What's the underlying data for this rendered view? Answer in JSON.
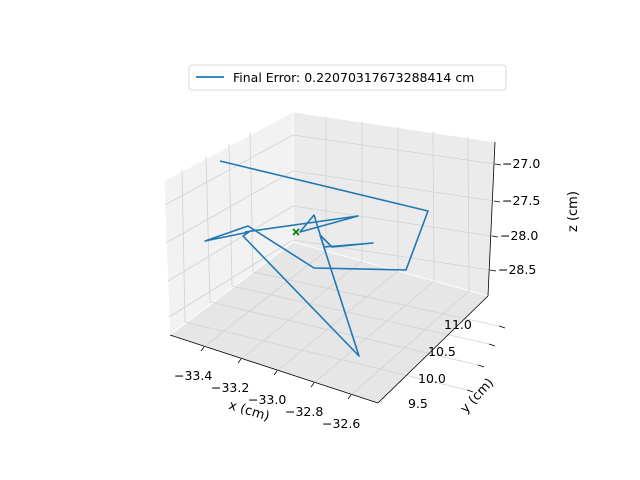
{
  "chart_data": {
    "type": "line",
    "projection": "3d",
    "legend": {
      "placement": "top-center",
      "entries": [
        {
          "label": "Final Error: 0.22070317673288414 cm"
        }
      ]
    },
    "axes": {
      "x": {
        "label": "x (cm)",
        "ticks": [
          "−33.4",
          "−33.2",
          "−33.0",
          "−32.8",
          "−32.6"
        ]
      },
      "y": {
        "label": "y (cm)",
        "ticks": [
          "9.5",
          "10.0",
          "10.5",
          "11.0"
        ]
      },
      "z": {
        "label": "z (cm)",
        "ticks": [
          "−27.0",
          "−27.5",
          "−28.0",
          "−28.5"
        ]
      },
      "grid": true
    },
    "series": [
      {
        "color": "#1f77b4"
      }
    ],
    "target_marker": {
      "symbol": "x",
      "color": "#008000"
    }
  }
}
